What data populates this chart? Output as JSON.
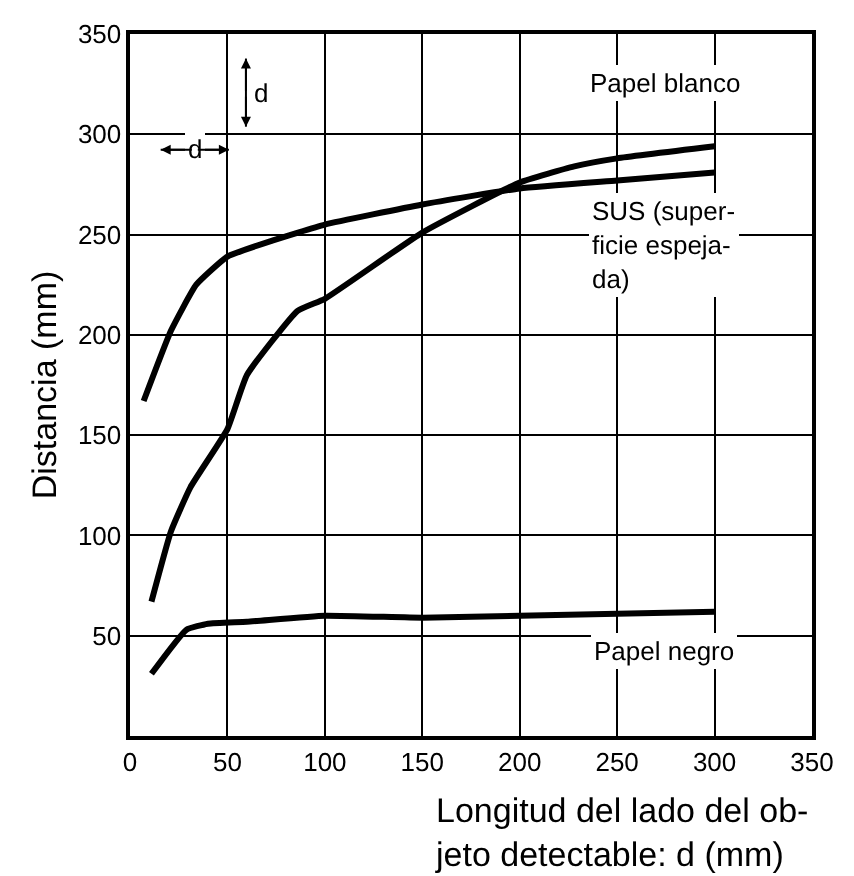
{
  "chart_data": {
    "type": "line",
    "xlabel": "Longitud del lado del ob-\njeto detectable: d (mm)",
    "ylabel": "Distancia (mm)",
    "xlim": [
      0,
      350
    ],
    "ylim": [
      0,
      350
    ],
    "xticks": [
      0,
      50,
      100,
      150,
      200,
      250,
      300,
      350
    ],
    "yticks": [
      50,
      100,
      150,
      200,
      250,
      300,
      350
    ],
    "grid": true,
    "legend": false,
    "marker": "none",
    "line_style": "solid",
    "annotations": [
      "d",
      "d"
    ],
    "series": [
      {
        "name": "Papel blanco",
        "color": "#000000",
        "x": [
          11,
          21,
          31,
          50,
          60,
          86,
          100,
          150,
          200,
          228,
          250,
          300
        ],
        "values": [
          67,
          102,
          124,
          153,
          180,
          212,
          218,
          251,
          276,
          284,
          288,
          294
        ]
      },
      {
        "name": "SUS (super-\nficie espeja-\nda)",
        "color": "#000000",
        "x": [
          7,
          21,
          34,
          50,
          73,
          100,
          150,
          200,
          250,
          300
        ],
        "values": [
          167,
          202,
          225,
          239,
          247,
          255,
          265,
          273,
          277,
          281
        ]
      },
      {
        "name": "Papel negro",
        "color": "#000000",
        "x": [
          11,
          29,
          40,
          60,
          100,
          150,
          200,
          300
        ],
        "values": [
          31,
          53,
          56,
          57,
          60,
          59,
          60,
          62
        ]
      }
    ]
  }
}
